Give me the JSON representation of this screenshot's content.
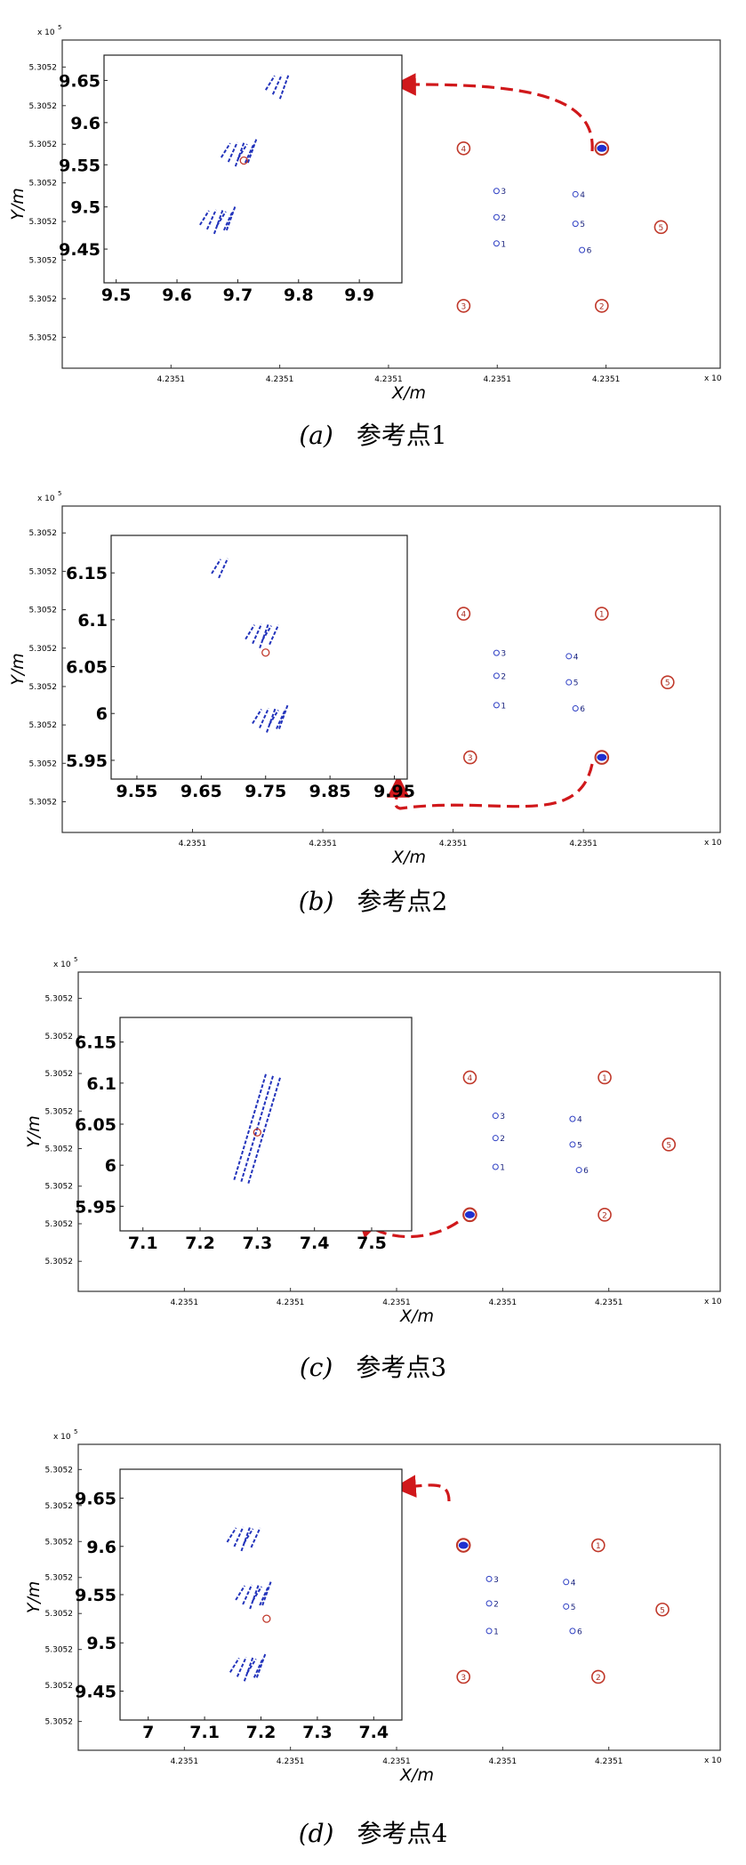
{
  "chart_data": [
    {
      "type": "scatter",
      "caption": {
        "letter": "(a)",
        "text": "参考点1"
      },
      "main": {
        "x_multiplier": "x 10",
        "y_multiplier": "x 10",
        "y_exp": "5",
        "xlabel": "X/m",
        "ylabel": "Y/m",
        "xticks": [
          "4.2351",
          "4.2351",
          "4.2351",
          "4.2351",
          "4.2351"
        ],
        "yticks": [
          "5.3052",
          "5.3052",
          "5.3052",
          "5.3052",
          "5.3052",
          "5.3052",
          "5.3052",
          "5.3052"
        ],
        "red_points": [
          {
            "id": "1",
            "x": 0.82,
            "y": 0.67
          },
          {
            "id": "2",
            "x": 0.82,
            "y": 0.19
          },
          {
            "id": "3",
            "x": 0.61,
            "y": 0.19
          },
          {
            "id": "4",
            "x": 0.61,
            "y": 0.67
          },
          {
            "id": "5",
            "x": 0.91,
            "y": 0.43
          }
        ],
        "blue_points": [
          {
            "id": "1",
            "x": 0.66,
            "y": 0.38
          },
          {
            "id": "2",
            "x": 0.66,
            "y": 0.46
          },
          {
            "id": "3",
            "x": 0.66,
            "y": 0.54
          },
          {
            "id": "4",
            "x": 0.78,
            "y": 0.53
          },
          {
            "id": "5",
            "x": 0.78,
            "y": 0.44
          },
          {
            "id": "6",
            "x": 0.79,
            "y": 0.36
          }
        ],
        "reference_point": {
          "x": 0.82,
          "y": 0.67
        },
        "arrow_direction": "to-inset"
      },
      "inset": {
        "xticks": [
          "9.5",
          "9.6",
          "9.7",
          "9.8",
          "9.9"
        ],
        "yticks": [
          "9.65",
          "9.6",
          "9.55",
          "9.5",
          "9.45"
        ],
        "xlim": [
          9.48,
          9.97
        ],
        "ylim": [
          9.41,
          9.68
        ],
        "clusters": [
          {
            "x": 9.705,
            "y": 9.565,
            "count": 6
          },
          {
            "x": 9.67,
            "y": 9.485,
            "count": 6
          },
          {
            "x": 9.765,
            "y": 9.645,
            "count": 3
          }
        ],
        "marker": {
          "x": 9.71,
          "y": 9.555
        }
      }
    },
    {
      "type": "scatter",
      "caption": {
        "letter": "(b)",
        "text": "参考点2"
      },
      "main": {
        "x_multiplier": "x 10",
        "y_multiplier": "x 10",
        "y_exp": "5",
        "xlabel": "X/m",
        "ylabel": "Y/m",
        "xticks": [
          "4.2351",
          "4.2351",
          "4.2351",
          "4.2351"
        ],
        "yticks": [
          "5.3052",
          "5.3052",
          "5.3052",
          "5.3052",
          "5.3052",
          "5.3052",
          "5.3052",
          "5.3052"
        ],
        "red_points": [
          {
            "id": "1",
            "x": 0.82,
            "y": 0.67
          },
          {
            "id": "2",
            "x": 0.82,
            "y": 0.23
          },
          {
            "id": "3",
            "x": 0.62,
            "y": 0.23
          },
          {
            "id": "4",
            "x": 0.61,
            "y": 0.67
          },
          {
            "id": "5",
            "x": 0.92,
            "y": 0.46
          }
        ],
        "blue_points": [
          {
            "id": "1",
            "x": 0.66,
            "y": 0.39
          },
          {
            "id": "2",
            "x": 0.66,
            "y": 0.48
          },
          {
            "id": "3",
            "x": 0.66,
            "y": 0.55
          },
          {
            "id": "4",
            "x": 0.77,
            "y": 0.54
          },
          {
            "id": "5",
            "x": 0.77,
            "y": 0.46
          },
          {
            "id": "6",
            "x": 0.78,
            "y": 0.38
          }
        ],
        "reference_point": {
          "x": 0.82,
          "y": 0.23
        },
        "arrow_direction": "to-inset-below"
      },
      "inset": {
        "xticks": [
          "9.55",
          "9.65",
          "9.75",
          "9.85",
          "9.95"
        ],
        "yticks": [
          "6.15",
          "6.1",
          "6.05",
          "6",
          "5.95"
        ],
        "xlim": [
          9.51,
          9.97
        ],
        "ylim": [
          5.93,
          6.19
        ],
        "clusters": [
          {
            "x": 9.745,
            "y": 6.085,
            "count": 5
          },
          {
            "x": 9.76,
            "y": 5.995,
            "count": 6
          },
          {
            "x": 9.68,
            "y": 6.155,
            "count": 2
          }
        ],
        "marker": {
          "x": 9.75,
          "y": 6.065
        }
      }
    },
    {
      "type": "scatter",
      "caption": {
        "letter": "(c)",
        "text": "参考点3"
      },
      "main": {
        "x_multiplier": "x 10",
        "y_multiplier": "x 10",
        "y_exp": "5",
        "xlabel": "X/m",
        "ylabel": "Y/m",
        "xticks": [
          "4.2351",
          "4.2351",
          "4.2351",
          "4.2351",
          "4.2351"
        ],
        "yticks": [
          "5.3052",
          "5.3052",
          "5.3052",
          "5.3052",
          "5.3052",
          "5.3052",
          "5.3052",
          "5.3052"
        ],
        "red_points": [
          {
            "id": "1",
            "x": 0.82,
            "y": 0.67
          },
          {
            "id": "2",
            "x": 0.82,
            "y": 0.24
          },
          {
            "id": "3",
            "x": 0.61,
            "y": 0.24
          },
          {
            "id": "4",
            "x": 0.61,
            "y": 0.67
          },
          {
            "id": "5",
            "x": 0.92,
            "y": 0.46
          }
        ],
        "blue_points": [
          {
            "id": "1",
            "x": 0.65,
            "y": 0.39
          },
          {
            "id": "2",
            "x": 0.65,
            "y": 0.48
          },
          {
            "id": "3",
            "x": 0.65,
            "y": 0.55
          },
          {
            "id": "4",
            "x": 0.77,
            "y": 0.54
          },
          {
            "id": "5",
            "x": 0.77,
            "y": 0.46
          },
          {
            "id": "6",
            "x": 0.78,
            "y": 0.38
          }
        ],
        "reference_point": {
          "x": 0.61,
          "y": 0.24
        },
        "arrow_direction": "to-inset-left"
      },
      "inset": {
        "xticks": [
          "7.1",
          "7.2",
          "7.3",
          "7.4",
          "7.5"
        ],
        "yticks": [
          "6.15",
          "6.1",
          "6.05",
          "6",
          "5.95"
        ],
        "xlim": [
          7.06,
          7.57
        ],
        "ylim": [
          5.92,
          6.18
        ],
        "clusters": [
          {
            "x": 7.3,
            "y": 6.045,
            "count": 3
          }
        ],
        "marker": {
          "x": 7.3,
          "y": 6.04
        }
      }
    },
    {
      "type": "scatter",
      "caption": {
        "letter": "(d)",
        "text": "参考点4"
      },
      "main": {
        "x_multiplier": "x 10",
        "y_multiplier": "x 10",
        "y_exp": "5",
        "xlabel": "X/m",
        "ylabel": "Y/m",
        "xticks": [
          "4.2351",
          "4.2351",
          "4.2351",
          "4.2351",
          "4.2351"
        ],
        "yticks": [
          "5.3052",
          "5.3052",
          "5.3052",
          "5.3052",
          "5.3052",
          "5.3052",
          "5.3052",
          "5.3052"
        ],
        "red_points": [
          {
            "id": "1",
            "x": 0.81,
            "y": 0.67
          },
          {
            "id": "2",
            "x": 0.81,
            "y": 0.24
          },
          {
            "id": "3",
            "x": 0.6,
            "y": 0.24
          },
          {
            "id": "4",
            "x": 0.6,
            "y": 0.67
          },
          {
            "id": "5",
            "x": 0.91,
            "y": 0.46
          }
        ],
        "blue_points": [
          {
            "id": "1",
            "x": 0.64,
            "y": 0.39
          },
          {
            "id": "2",
            "x": 0.64,
            "y": 0.48
          },
          {
            "id": "3",
            "x": 0.64,
            "y": 0.56
          },
          {
            "id": "4",
            "x": 0.76,
            "y": 0.55
          },
          {
            "id": "5",
            "x": 0.76,
            "y": 0.47
          },
          {
            "id": "6",
            "x": 0.77,
            "y": 0.39
          }
        ],
        "reference_point": {
          "x": 0.6,
          "y": 0.67
        },
        "arrow_direction": "to-inset-left"
      },
      "inset": {
        "xticks": [
          "7",
          "7.1",
          "7.2",
          "7.3",
          "7.4"
        ],
        "yticks": [
          "9.65",
          "9.6",
          "9.55",
          "9.5",
          "9.45"
        ],
        "xlim": [
          6.95,
          7.45
        ],
        "ylim": [
          9.42,
          9.68
        ],
        "clusters": [
          {
            "x": 7.17,
            "y": 9.61,
            "count": 5
          },
          {
            "x": 7.19,
            "y": 9.55,
            "count": 6
          },
          {
            "x": 7.18,
            "y": 9.475,
            "count": 6
          }
        ],
        "marker": {
          "x": 7.21,
          "y": 9.525
        }
      }
    }
  ]
}
